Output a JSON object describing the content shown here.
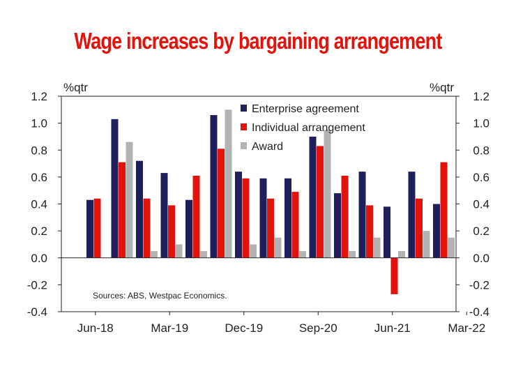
{
  "title": "Wage increases by bargaining arrangement",
  "chart_data": {
    "type": "bar",
    "title": "Wage increases by bargaining arrangement",
    "ylabel_left": "%qtr",
    "ylabel_right": "%qtr",
    "ylim": [
      -0.4,
      1.2
    ],
    "yticks": [
      -0.4,
      -0.2,
      0.0,
      0.2,
      0.4,
      0.6,
      0.8,
      1.0,
      1.2
    ],
    "ytick_labels": [
      "-0.4",
      "-0.2",
      "0.0",
      "0.2",
      "0.4",
      "0.6",
      "0.8",
      "1.0",
      "1.2"
    ],
    "categories": [
      "Jun-18",
      "Sep-18",
      "Dec-18",
      "Mar-19",
      "Jun-19",
      "Sep-19",
      "Dec-19",
      "Mar-20",
      "Jun-20",
      "Sep-20",
      "Dec-20",
      "Mar-21",
      "Jun-21",
      "Sep-21",
      "Dec-21",
      "Mar-22"
    ],
    "xtick_labels": [
      "Jun-18",
      "Mar-19",
      "Dec-19",
      "Sep-20",
      "Jun-21",
      "Mar-22"
    ],
    "xtick_every": 3,
    "series": [
      {
        "name": "Enterprise agreement",
        "color": "#1f1f5c",
        "values": [
          0.43,
          1.03,
          0.72,
          0.63,
          0.43,
          1.06,
          0.64,
          0.59,
          0.59,
          0.9,
          0.48,
          0.64,
          0.38,
          0.64,
          0.4,
          null
        ]
      },
      {
        "name": "Individual arrangement",
        "color": "#e3120b",
        "values": [
          0.44,
          0.71,
          0.44,
          0.39,
          0.61,
          0.81,
          0.59,
          0.44,
          0.49,
          0.83,
          0.61,
          0.39,
          -0.27,
          0.44,
          0.71,
          null
        ]
      },
      {
        "name": "Award",
        "color": "#b3b3b3",
        "values": [
          null,
          0.86,
          0.05,
          0.1,
          0.05,
          1.1,
          0.1,
          0.15,
          0.05,
          0.95,
          0.05,
          0.15,
          0.05,
          0.2,
          0.15,
          null
        ]
      }
    ],
    "legend_position": "top-right",
    "grid": false,
    "source_note": "Sources: ABS, Westpac Economics."
  }
}
